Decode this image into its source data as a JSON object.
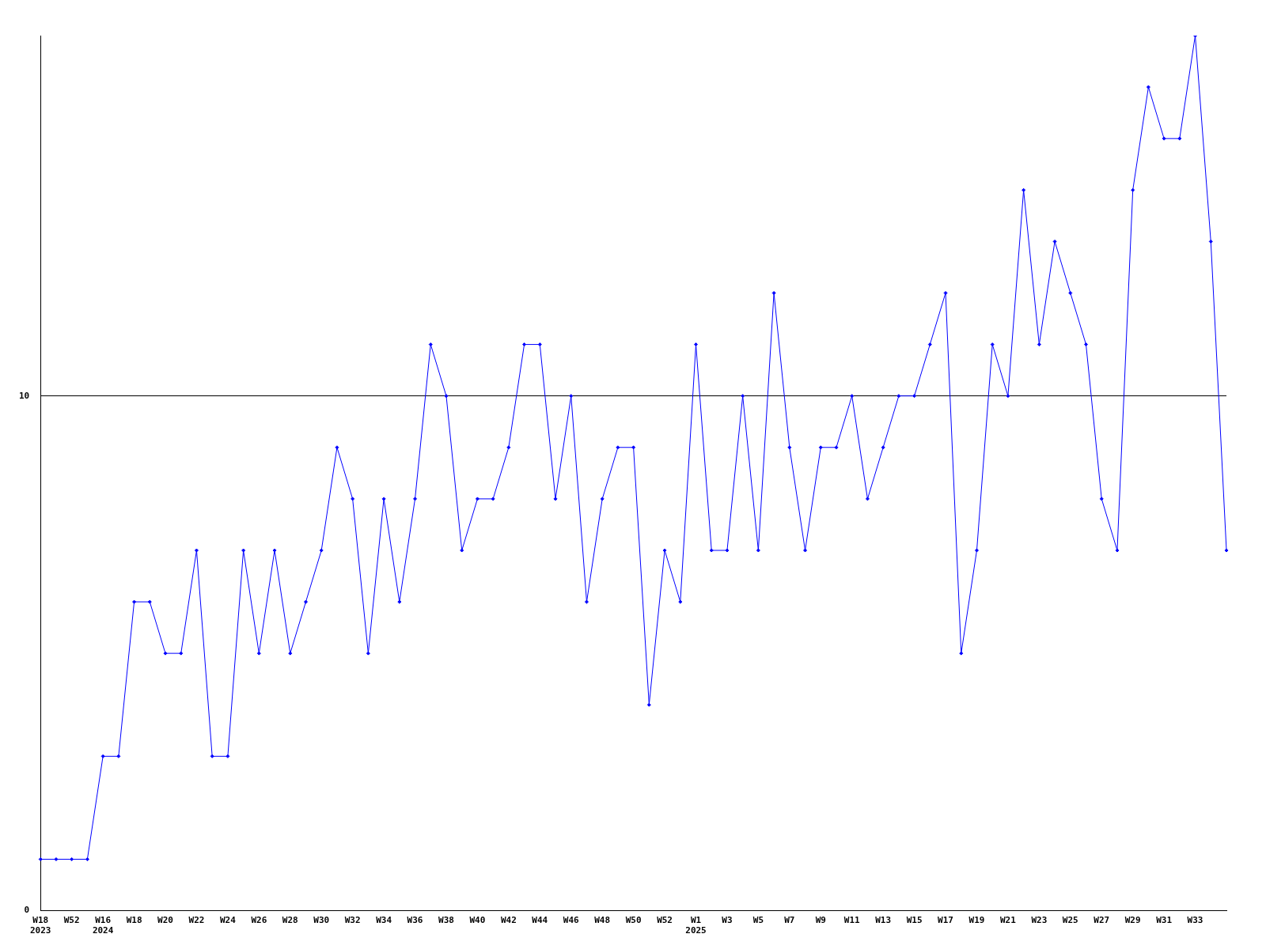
{
  "chart_data": {
    "type": "line",
    "categories": [
      "W18\n2023",
      null,
      "W52",
      null,
      "W16\n2024",
      null,
      "W18",
      null,
      "W20",
      null,
      "W22",
      null,
      "W24",
      null,
      "W26",
      null,
      "W28",
      null,
      "W30",
      null,
      "W32",
      null,
      "W34",
      null,
      "W36",
      null,
      "W38",
      null,
      "W40",
      null,
      "W42",
      null,
      "W44",
      null,
      "W46",
      null,
      "W48",
      null,
      "W50",
      null,
      "W52",
      null,
      "W1\n2025",
      null,
      "W3",
      null,
      "W5",
      null,
      "W7",
      null,
      "W9",
      null,
      "W11",
      null,
      "W13",
      null,
      "W15",
      null,
      "W17",
      null,
      "W19",
      null,
      "W21",
      null,
      "W23",
      null,
      "W25",
      null,
      "W27",
      null,
      "W29",
      null,
      "W31",
      null,
      "W33",
      null,
      null
    ],
    "series": [
      {
        "color": "#0000ff",
        "values": [
          1,
          1,
          1,
          1,
          3,
          3,
          6,
          6,
          5,
          5,
          7,
          3,
          3,
          7,
          5,
          7,
          5,
          6,
          7,
          9,
          8,
          5,
          8,
          6,
          8,
          11,
          10,
          7,
          8,
          8,
          9,
          11,
          11,
          8,
          10,
          6,
          8,
          9,
          9,
          4,
          7,
          6,
          11,
          7,
          7,
          10,
          7,
          12,
          9,
          7,
          9,
          9,
          10,
          8,
          9,
          10,
          10,
          11,
          12,
          5,
          7,
          11,
          10,
          14,
          11,
          13,
          12,
          11,
          8,
          7,
          14,
          16,
          15,
          15,
          17,
          13,
          7
        ]
      }
    ],
    "ylim": [
      0,
      17
    ],
    "yticks": [
      0,
      10
    ],
    "grid": "y",
    "marker": "diamond",
    "legend": false
  }
}
